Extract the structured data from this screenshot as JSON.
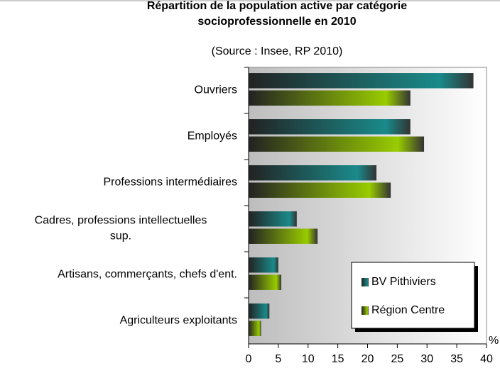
{
  "chart_data": {
    "type": "bar",
    "orientation": "horizontal",
    "title": "Répartition de la population active par catégorie socioprofessionnelle en 2010",
    "subtitle": "(Source : Insee, RP 2010)",
    "x_label": "%",
    "categories": [
      "Ouvriers",
      "Employés",
      "Professions intermédiaires",
      "Cadres, professions intellectuelles sup.",
      "Artisans, commerçants, chefs d'ent.",
      "Agriculteurs exploitants"
    ],
    "series": [
      {
        "name": "BV Pithiviers",
        "color": "#1a8a8a",
        "values": [
          37.8,
          27.2,
          21.5,
          8.1,
          5.0,
          3.5
        ]
      },
      {
        "name": "Région Centre",
        "color": "#99cc00",
        "values": [
          27.2,
          29.5,
          23.9,
          11.6,
          5.5,
          2.1
        ]
      }
    ],
    "xlim": [
      0,
      40
    ],
    "xticks": [
      0,
      5,
      10,
      15,
      20,
      25,
      30,
      35,
      40
    ],
    "legend": "lower right"
  }
}
